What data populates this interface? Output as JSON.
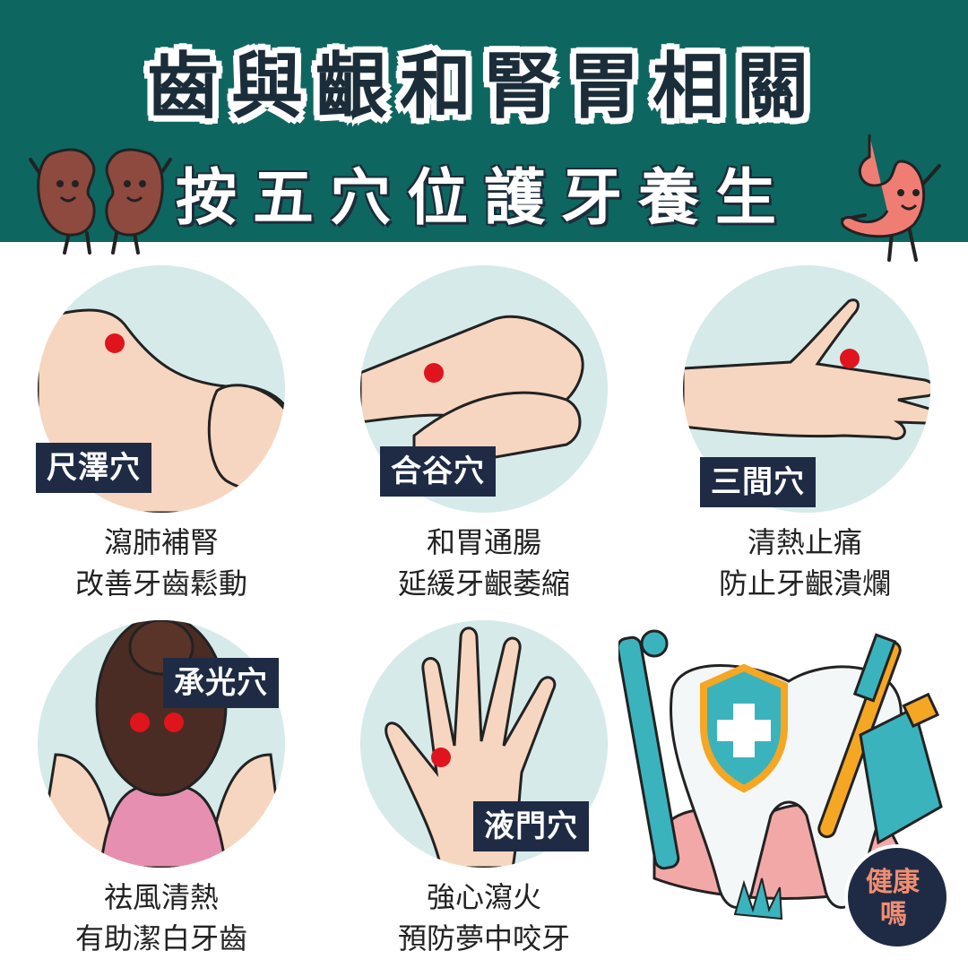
{
  "header": {
    "title_line1": "齒與齦和腎胃相關",
    "title_line2": "按五穴位護牙養生"
  },
  "acupoints": [
    {
      "name": "尺澤穴",
      "benefit_line1": "瀉肺補腎",
      "benefit_line2": "改善牙齒鬆動"
    },
    {
      "name": "合谷穴",
      "benefit_line1": "和胃通腸",
      "benefit_line2": "延緩牙齦萎縮"
    },
    {
      "name": "三間穴",
      "benefit_line1": "清熱止痛",
      "benefit_line2": "防止牙齦潰爛"
    },
    {
      "name": "承光穴",
      "benefit_line1": "祛風清熱",
      "benefit_line2": "有助潔白牙齒"
    },
    {
      "name": "液門穴",
      "benefit_line1": "強心瀉火",
      "benefit_line2": "預防夢中咬牙"
    }
  ],
  "logo": {
    "line1": "健康",
    "line2": "嗎"
  },
  "colors": {
    "header_bg": "#0e6660",
    "circle_bg": "#d6eaea",
    "label_bg": "#1f2b45",
    "point": "#e0141d",
    "skin": "#f6d6c0"
  },
  "icons": [
    "kidney-mascot-icon",
    "stomach-mascot-icon",
    "tooth-icon",
    "shield-cross-icon",
    "toothbrush-icon",
    "toothpaste-icon"
  ]
}
